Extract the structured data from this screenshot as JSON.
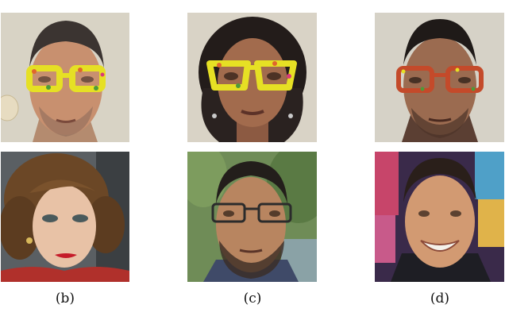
{
  "figure": {
    "captions": [
      {
        "key": "b",
        "text": "(b)"
      },
      {
        "key": "c",
        "text": "(c)"
      },
      {
        "key": "d",
        "text": "(d)"
      }
    ],
    "colors": {
      "background": "#ffffff",
      "glasses_yellow": "#e6e024",
      "glasses_orange": "#e0662c",
      "glasses_green": "#4e9a3a",
      "frame_dark": "#2b2b2b"
    }
  }
}
